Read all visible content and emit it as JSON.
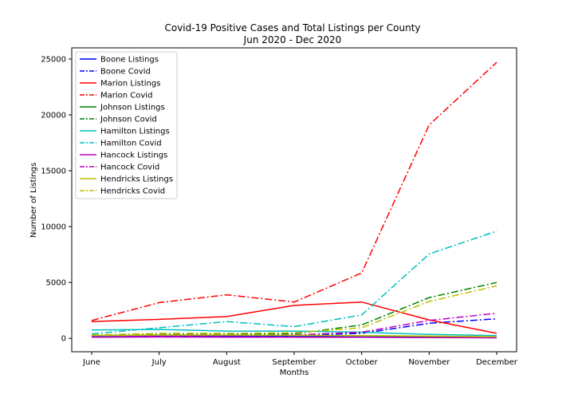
{
  "chart_data": {
    "type": "line",
    "title": "Covid-19 Positive Cases and Total Listings per County",
    "subtitle": "Jun 2020 - Dec 2020",
    "xlabel": "Months",
    "ylabel": "Number of Listings",
    "categories": [
      "June",
      "July",
      "August",
      "September",
      "October",
      "November",
      "December"
    ],
    "ylim": [
      -1200,
      26000
    ],
    "yticks": [
      0,
      5000,
      10000,
      15000,
      20000,
      25000
    ],
    "ytick_labels": [
      "0",
      "5000",
      "10000",
      "15000",
      "20000",
      "25000"
    ],
    "grid": false,
    "legend": "top-left",
    "series": [
      {
        "name": "Boone Listings",
        "color": "#0000ff",
        "dash": "solid",
        "values": [
          150,
          180,
          170,
          150,
          120,
          90,
          60
        ]
      },
      {
        "name": "Boone Covid",
        "color": "#0000ff",
        "dash": "dashdot",
        "values": [
          100,
          200,
          200,
          250,
          450,
          1350,
          1750
        ]
      },
      {
        "name": "Marion Listings",
        "color": "#ff0000",
        "dash": "solid",
        "values": [
          1500,
          1700,
          1950,
          2950,
          3250,
          1650,
          450
        ]
      },
      {
        "name": "Marion Covid",
        "color": "#ff0000",
        "dash": "dashdot",
        "values": [
          1600,
          3200,
          3900,
          3250,
          5850,
          19100,
          24700
        ]
      },
      {
        "name": "Johnson Listings",
        "color": "#008000",
        "dash": "solid",
        "values": [
          250,
          300,
          280,
          260,
          230,
          180,
          130
        ]
      },
      {
        "name": "Johnson Covid",
        "color": "#008000",
        "dash": "dashdot",
        "values": [
          300,
          400,
          400,
          400,
          1200,
          3650,
          5000
        ]
      },
      {
        "name": "Hamilton Listings",
        "color": "#00bfbf",
        "dash": "solid",
        "values": [
          750,
          800,
          650,
          650,
          550,
          350,
          250
        ]
      },
      {
        "name": "Hamilton Covid",
        "color": "#00bfbf",
        "dash": "dashdot",
        "values": [
          400,
          950,
          1500,
          1050,
          2100,
          7550,
          9600
        ]
      },
      {
        "name": "Hancock Listings",
        "color": "#bf00bf",
        "dash": "solid",
        "values": [
          100,
          120,
          110,
          100,
          90,
          70,
          50
        ]
      },
      {
        "name": "Hancock Covid",
        "color": "#bf00bf",
        "dash": "dashdot",
        "values": [
          100,
          200,
          250,
          300,
          550,
          1600,
          2250
        ]
      },
      {
        "name": "Hendricks Listings",
        "color": "#bfbf00",
        "dash": "solid",
        "values": [
          250,
          300,
          300,
          280,
          250,
          200,
          150
        ]
      },
      {
        "name": "Hendricks Covid",
        "color": "#bfbf00",
        "dash": "dashdot",
        "values": [
          300,
          450,
          450,
          500,
          950,
          3300,
          4700
        ]
      }
    ]
  }
}
